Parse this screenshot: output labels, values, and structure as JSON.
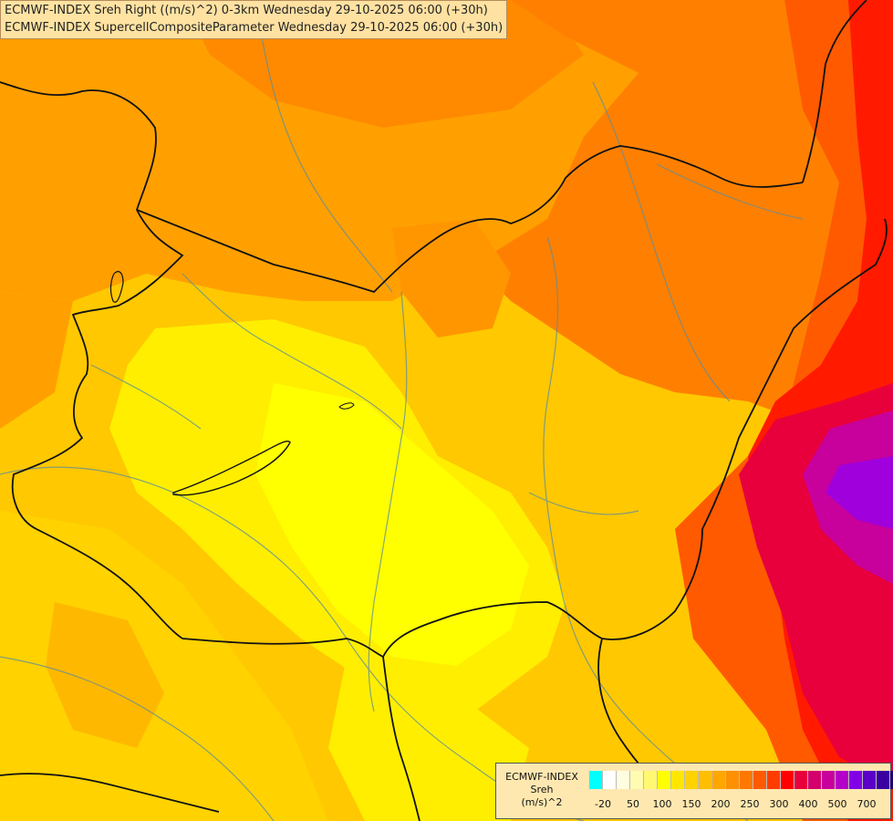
{
  "titles": {
    "line1": "ECMWF-INDEX Sreh Right ((m/s)^2) 0-3km Wednesday 29-10-2025 06:00 (+30h)",
    "line2": "ECMWF-INDEX SupercellCompositeParameter Wednesday 29-10-2025 06:00 (+30h)"
  },
  "legend": {
    "source": "ECMWF-INDEX",
    "variable": "Sreh",
    "unit": "(m/s)^2",
    "colors": [
      "#00ffff",
      "#ffffff",
      "#fffde0",
      "#fffbb0",
      "#fff870",
      "#ffff00",
      "#ffe600",
      "#ffd200",
      "#ffbe00",
      "#ffa600",
      "#ff9000",
      "#ff7800",
      "#ff5a00",
      "#ff3c00",
      "#ff0000",
      "#e8003c",
      "#d4006e",
      "#c8009c",
      "#b400c8",
      "#8200e6",
      "#5a00c8",
      "#3c00a0",
      "#1e0078"
    ],
    "ticks": [
      "-20",
      "50",
      "100",
      "150",
      "200",
      "250",
      "300",
      "400",
      "500",
      "700"
    ]
  }
}
